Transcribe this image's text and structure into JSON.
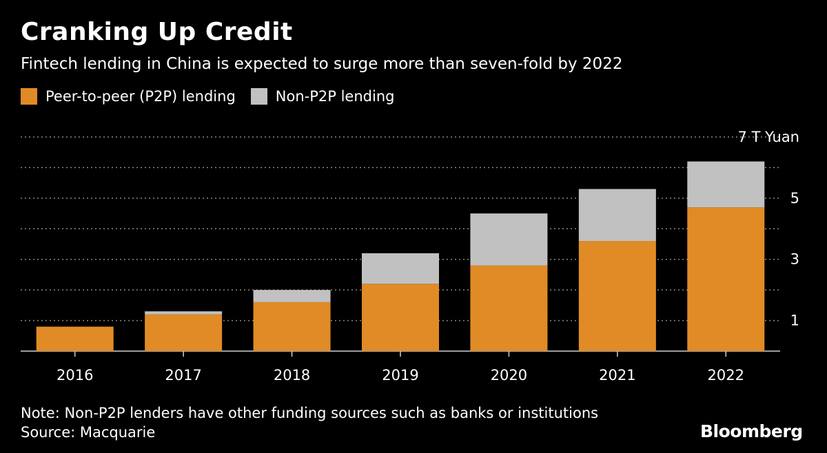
{
  "header": {
    "title": "Cranking Up Credit",
    "subtitle": "Fintech lending in China is expected to surge more than seven-fold by 2022"
  },
  "footer": {
    "note": "Note: Non-P2P lenders have other funding sources such as banks or institutions",
    "source": "Source: Macquarie",
    "logo": "Bloomberg"
  },
  "colors": {
    "background": "#000000",
    "p2p": "#E08B26",
    "non_p2p": "#C1C1C1",
    "grid": "#8A8A8A",
    "text": "#FFFFFF"
  },
  "chart_data": {
    "type": "bar",
    "stacked": true,
    "title": "Cranking Up Credit",
    "subtitle": "Fintech lending in China is expected to surge more than seven-fold by 2022",
    "categories": [
      "2016",
      "2017",
      "2018",
      "2019",
      "2020",
      "2021",
      "2022"
    ],
    "series": [
      {
        "name": "Peer-to-peer (P2P) lending",
        "color": "#E08B26",
        "values": [
          0.8,
          1.2,
          1.6,
          2.2,
          2.8,
          3.6,
          4.7
        ]
      },
      {
        "name": "Non-P2P lending",
        "color": "#C1C1C1",
        "values": [
          0.0,
          0.1,
          0.4,
          1.0,
          1.7,
          1.7,
          1.5
        ]
      }
    ],
    "ylim": [
      0,
      7
    ],
    "yticks": [
      1,
      2,
      3,
      4,
      5,
      6,
      7
    ],
    "ytick_labels": [
      "1",
      "",
      "3",
      "",
      "5",
      "",
      "7 T Yuan"
    ],
    "y_axis_position": "right",
    "grid": "dotted",
    "legend": "top-left"
  }
}
